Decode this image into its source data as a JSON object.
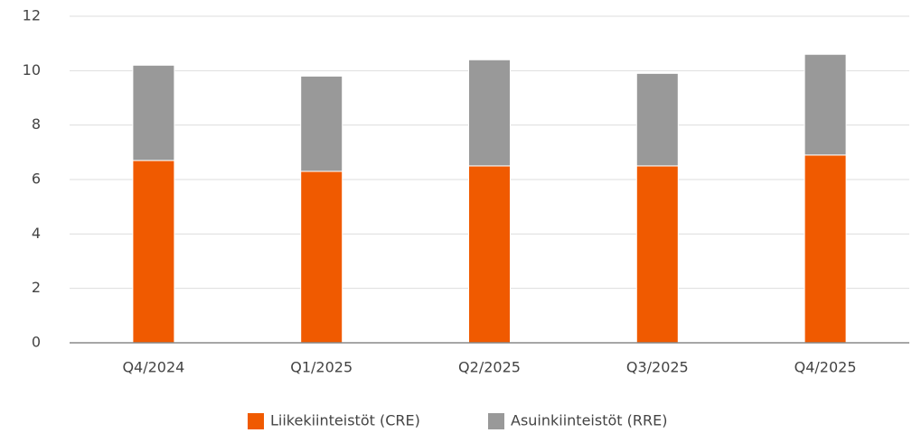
{
  "chart_data": {
    "type": "stacked_bar",
    "categories": [
      "Q4/2024",
      "Q1/2025",
      "Q2/2025",
      "Q3/2025",
      "Q4/2025"
    ],
    "series": [
      {
        "name": "Liikekiinteistöt (CRE)",
        "color": "#f05a00",
        "values": [
          6.7,
          6.3,
          6.5,
          6.5,
          6.9
        ]
      },
      {
        "name": "Asuinkiinteistöt (RRE)",
        "color": "#999999",
        "values": [
          3.5,
          3.5,
          3.9,
          3.4,
          3.7
        ]
      }
    ],
    "ylim": [
      0,
      12
    ],
    "yticks": [
      0,
      2,
      4,
      6,
      8,
      10,
      12
    ],
    "grid": true,
    "legend": "bottom"
  }
}
